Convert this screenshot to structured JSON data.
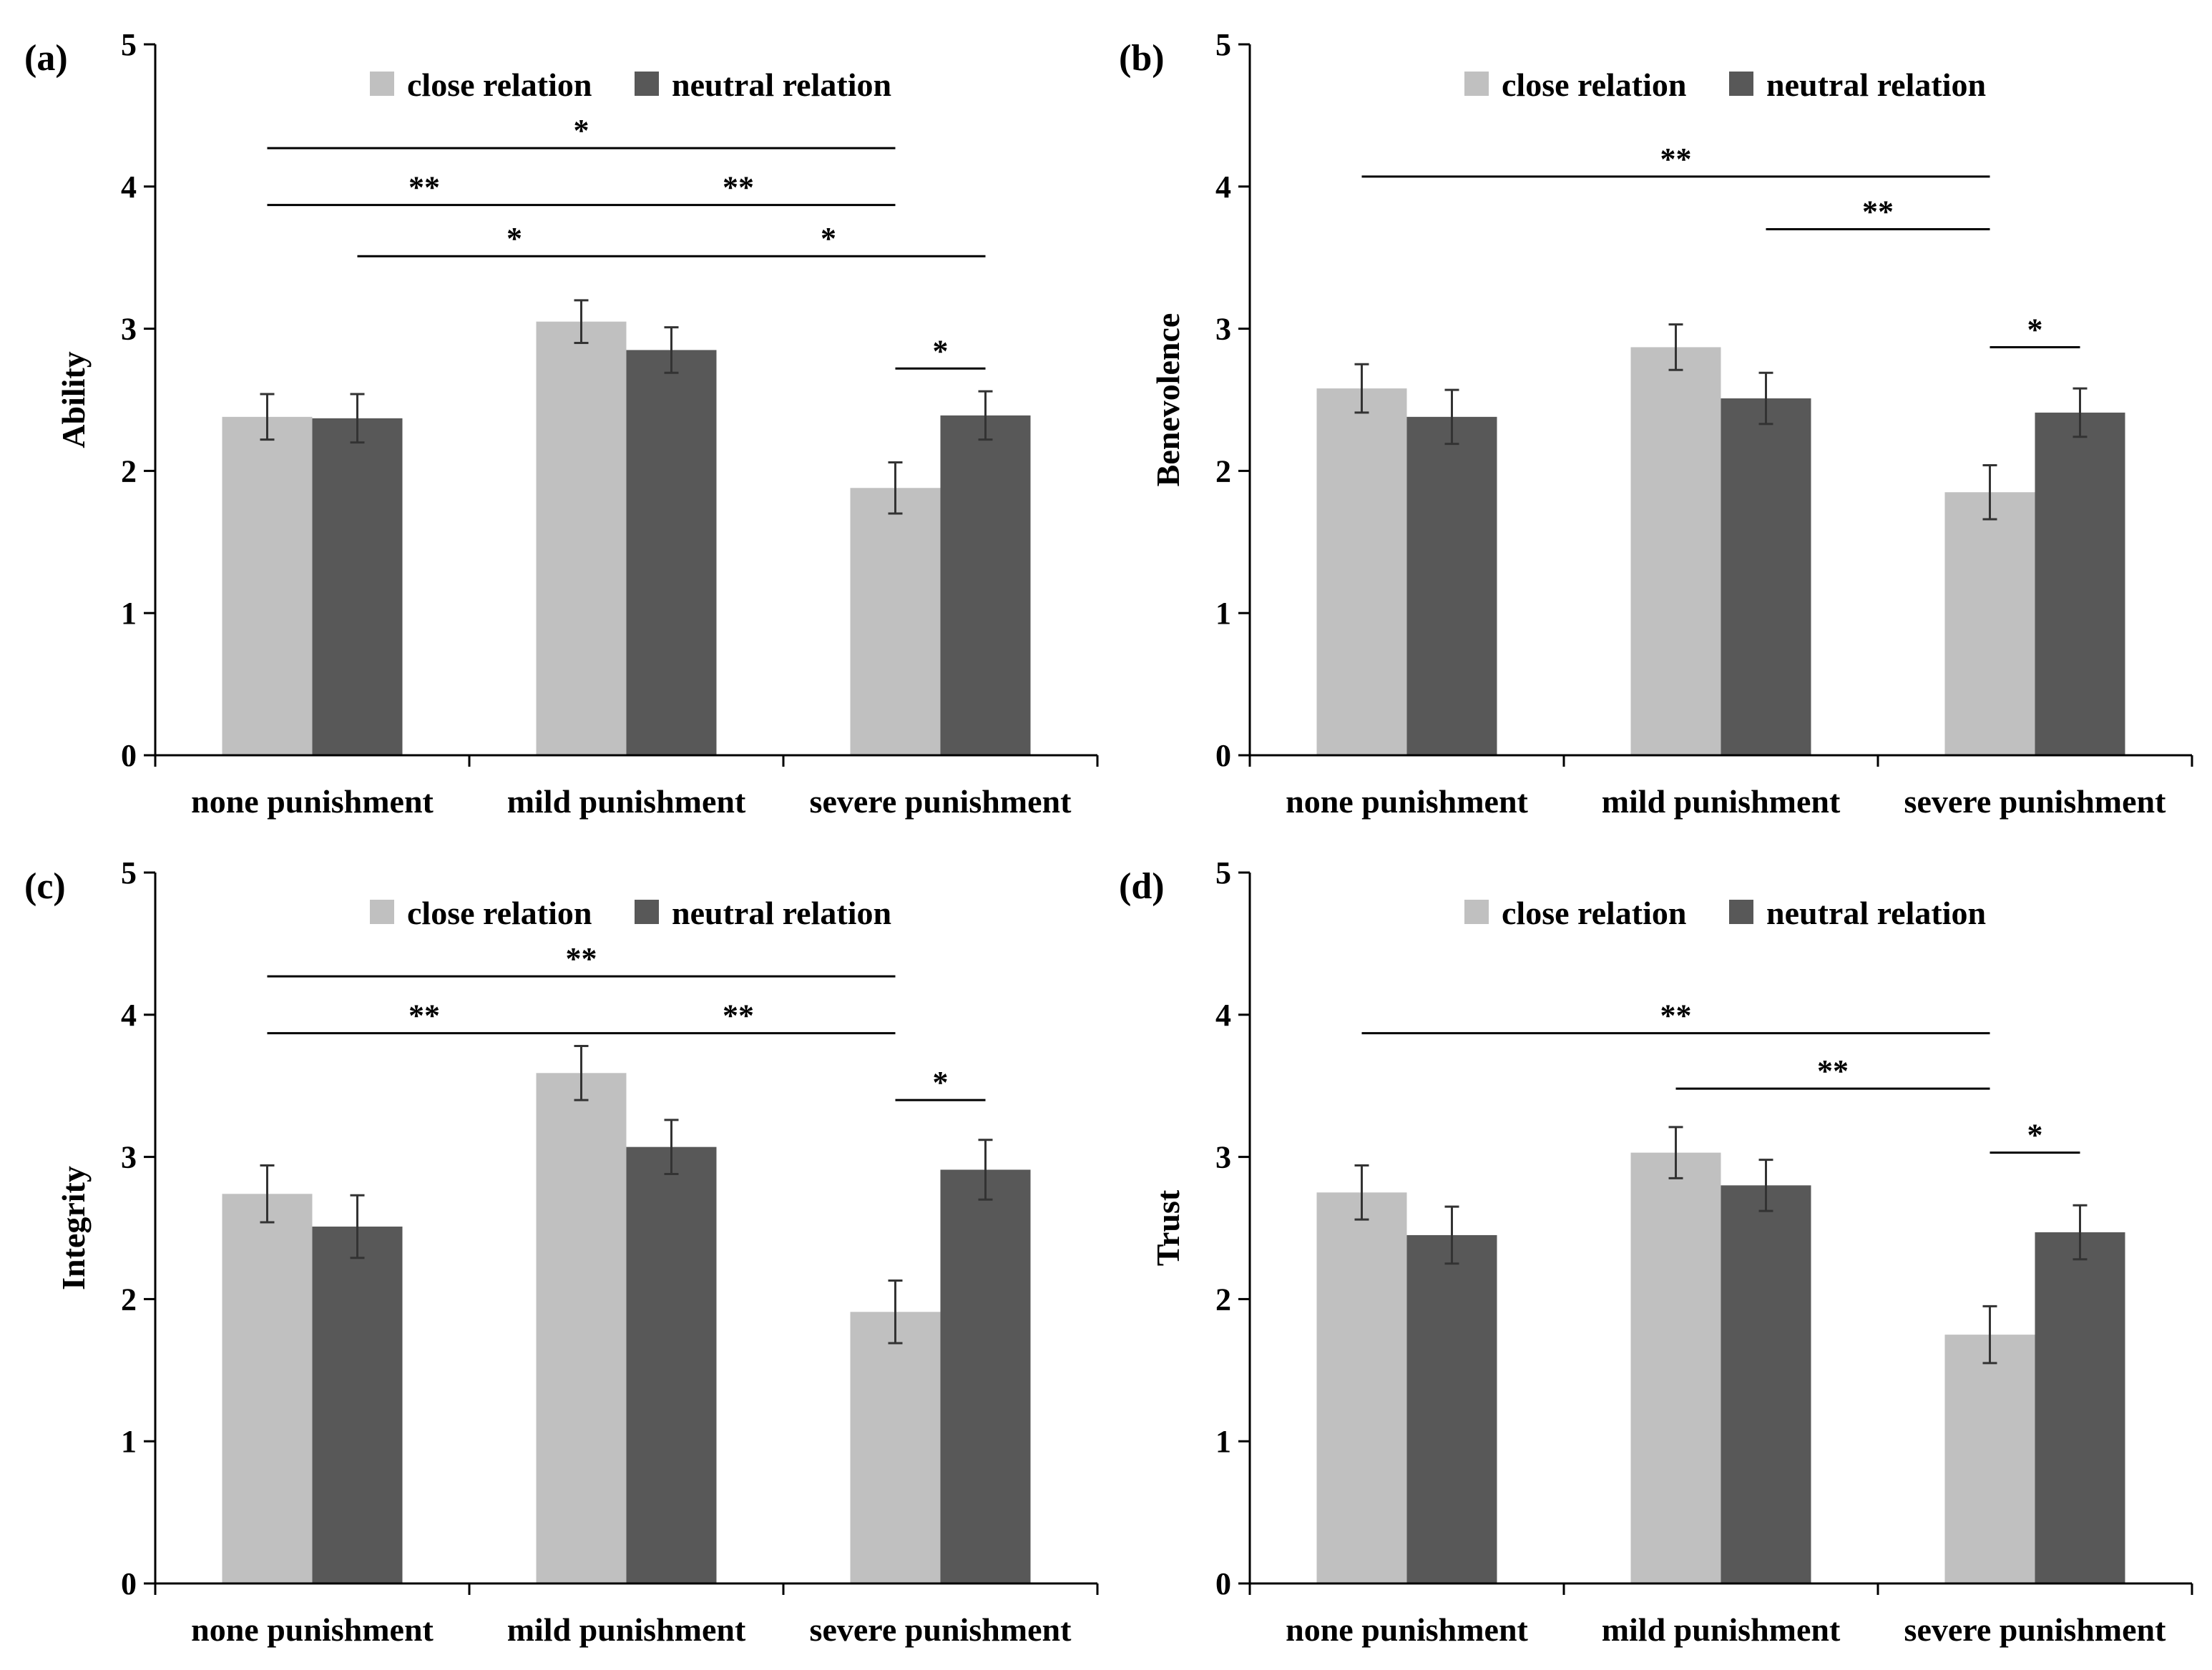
{
  "colors": {
    "close": "#c0c0c0",
    "neutral": "#585858",
    "axis": "#000000"
  },
  "chart_data": [
    {
      "type": "bar",
      "panel_label": "(a)",
      "ylabel": "Ability",
      "ylim": [
        0,
        5
      ],
      "yticks": [
        "0",
        "1",
        "2",
        "3",
        "4",
        "5"
      ],
      "categories": [
        "none punishment",
        "mild punishment",
        "severe punishment"
      ],
      "series": [
        {
          "name": "close relation",
          "values": [
            2.38,
            3.05,
            1.88
          ],
          "errors": [
            0.16,
            0.15,
            0.18
          ]
        },
        {
          "name": "neutral relation",
          "values": [
            2.37,
            2.85,
            2.39
          ],
          "errors": [
            0.17,
            0.16,
            0.17
          ]
        }
      ],
      "legend": [
        "close relation",
        "neutral relation"
      ],
      "significance": [
        {
          "from": [
            0,
            0
          ],
          "to": [
            2,
            0
          ],
          "y": 4.27,
          "label": "*"
        },
        {
          "from": [
            0,
            0
          ],
          "to": [
            1,
            0
          ],
          "y": 3.87,
          "label": "**"
        },
        {
          "from": [
            1,
            0
          ],
          "to": [
            2,
            0
          ],
          "y": 3.87,
          "label": "**"
        },
        {
          "from": [
            0,
            1
          ],
          "to": [
            1,
            1
          ],
          "y": 3.51,
          "label": "*"
        },
        {
          "from": [
            1,
            1
          ],
          "to": [
            2,
            1
          ],
          "y": 3.51,
          "label": "*"
        },
        {
          "from": [
            2,
            0
          ],
          "to": [
            2,
            1
          ],
          "y": 2.72,
          "label": "*"
        }
      ]
    },
    {
      "type": "bar",
      "panel_label": "(b)",
      "ylabel": "Benevolence",
      "ylim": [
        0,
        5
      ],
      "yticks": [
        "0",
        "1",
        "2",
        "3",
        "4",
        "5"
      ],
      "categories": [
        "none punishment",
        "mild punishment",
        "severe punishment"
      ],
      "series": [
        {
          "name": "close relation",
          "values": [
            2.58,
            2.87,
            1.85
          ],
          "errors": [
            0.17,
            0.16,
            0.19
          ]
        },
        {
          "name": "neutral relation",
          "values": [
            2.38,
            2.51,
            2.41
          ],
          "errors": [
            0.19,
            0.18,
            0.17
          ]
        }
      ],
      "legend": [
        "close relation",
        "neutral relation"
      ],
      "significance": [
        {
          "from": [
            0,
            0
          ],
          "to": [
            2,
            0
          ],
          "y": 4.07,
          "label": "**"
        },
        {
          "from": [
            1,
            1
          ],
          "to": [
            2,
            0
          ],
          "y": 3.7,
          "label": "**"
        },
        {
          "from": [
            2,
            0
          ],
          "to": [
            2,
            1
          ],
          "y": 2.87,
          "label": "*"
        }
      ]
    },
    {
      "type": "bar",
      "panel_label": "(c)",
      "ylabel": "Integrity",
      "ylim": [
        0,
        5
      ],
      "yticks": [
        "0",
        "1",
        "2",
        "3",
        "4",
        "5"
      ],
      "categories": [
        "none punishment",
        "mild punishment",
        "severe punishment"
      ],
      "series": [
        {
          "name": "close relation",
          "values": [
            2.74,
            3.59,
            1.91
          ],
          "errors": [
            0.2,
            0.19,
            0.22
          ]
        },
        {
          "name": "neutral relation",
          "values": [
            2.51,
            3.07,
            2.91
          ],
          "errors": [
            0.22,
            0.19,
            0.21
          ]
        }
      ],
      "legend": [
        "close relation",
        "neutral relation"
      ],
      "significance": [
        {
          "from": [
            0,
            0
          ],
          "to": [
            2,
            0
          ],
          "y": 4.27,
          "label": "**"
        },
        {
          "from": [
            0,
            0
          ],
          "to": [
            1,
            0
          ],
          "y": 3.87,
          "label": "**"
        },
        {
          "from": [
            1,
            0
          ],
          "to": [
            2,
            0
          ],
          "y": 3.87,
          "label": "**"
        },
        {
          "from": [
            2,
            0
          ],
          "to": [
            2,
            1
          ],
          "y": 3.4,
          "label": "*"
        }
      ]
    },
    {
      "type": "bar",
      "panel_label": "(d)",
      "ylabel": "Trust",
      "ylim": [
        0,
        5
      ],
      "yticks": [
        "0",
        "1",
        "2",
        "3",
        "4",
        "5"
      ],
      "categories": [
        "none punishment",
        "mild punishment",
        "severe punishment"
      ],
      "series": [
        {
          "name": "close relation",
          "values": [
            2.75,
            3.03,
            1.75
          ],
          "errors": [
            0.19,
            0.18,
            0.2
          ]
        },
        {
          "name": "neutral relation",
          "values": [
            2.45,
            2.8,
            2.47
          ],
          "errors": [
            0.2,
            0.18,
            0.19
          ]
        }
      ],
      "legend": [
        "close relation",
        "neutral relation"
      ],
      "significance": [
        {
          "from": [
            0,
            0
          ],
          "to": [
            2,
            0
          ],
          "y": 3.87,
          "label": "**"
        },
        {
          "from": [
            1,
            0
          ],
          "to": [
            2,
            0
          ],
          "y": 3.48,
          "label": "**"
        },
        {
          "from": [
            2,
            0
          ],
          "to": [
            2,
            1
          ],
          "y": 3.03,
          "label": "*"
        }
      ]
    }
  ]
}
